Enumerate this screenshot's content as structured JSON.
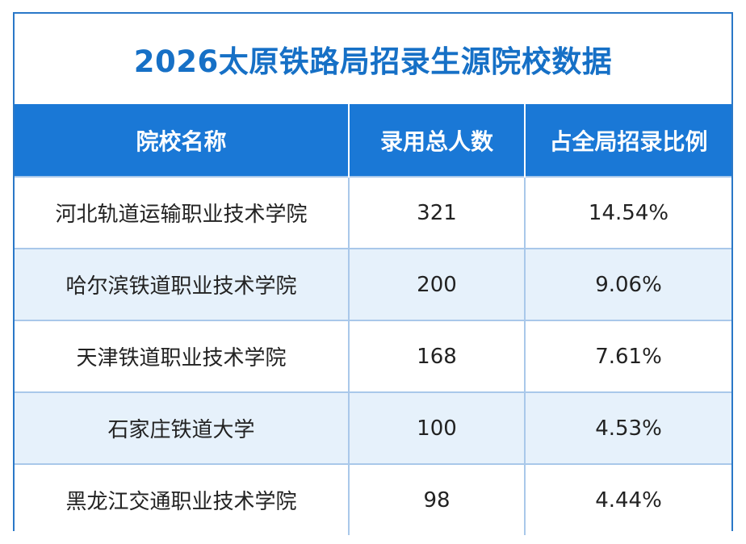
{
  "chart_data": {
    "type": "table",
    "title": "2026太原铁路局招录生源院校数据",
    "columns": [
      "院校名称",
      "录用总人数",
      "占全局招录比例"
    ],
    "rows": [
      [
        "河北轨道运输职业技术学院",
        "321",
        "14.54%"
      ],
      [
        "哈尔滨铁道职业技术学院",
        "200",
        "9.06%"
      ],
      [
        "天津铁道职业技术学院",
        "168",
        "7.61%"
      ],
      [
        "石家庄铁道大学",
        "100",
        "4.53%"
      ],
      [
        "黑龙江交通职业技术学院",
        "98",
        "4.44%"
      ]
    ]
  },
  "colors": {
    "title": "#1670c6",
    "header_bg": "#1a78d6",
    "alt_row_bg": "#e6f1fb",
    "border": "#2a78c8"
  }
}
